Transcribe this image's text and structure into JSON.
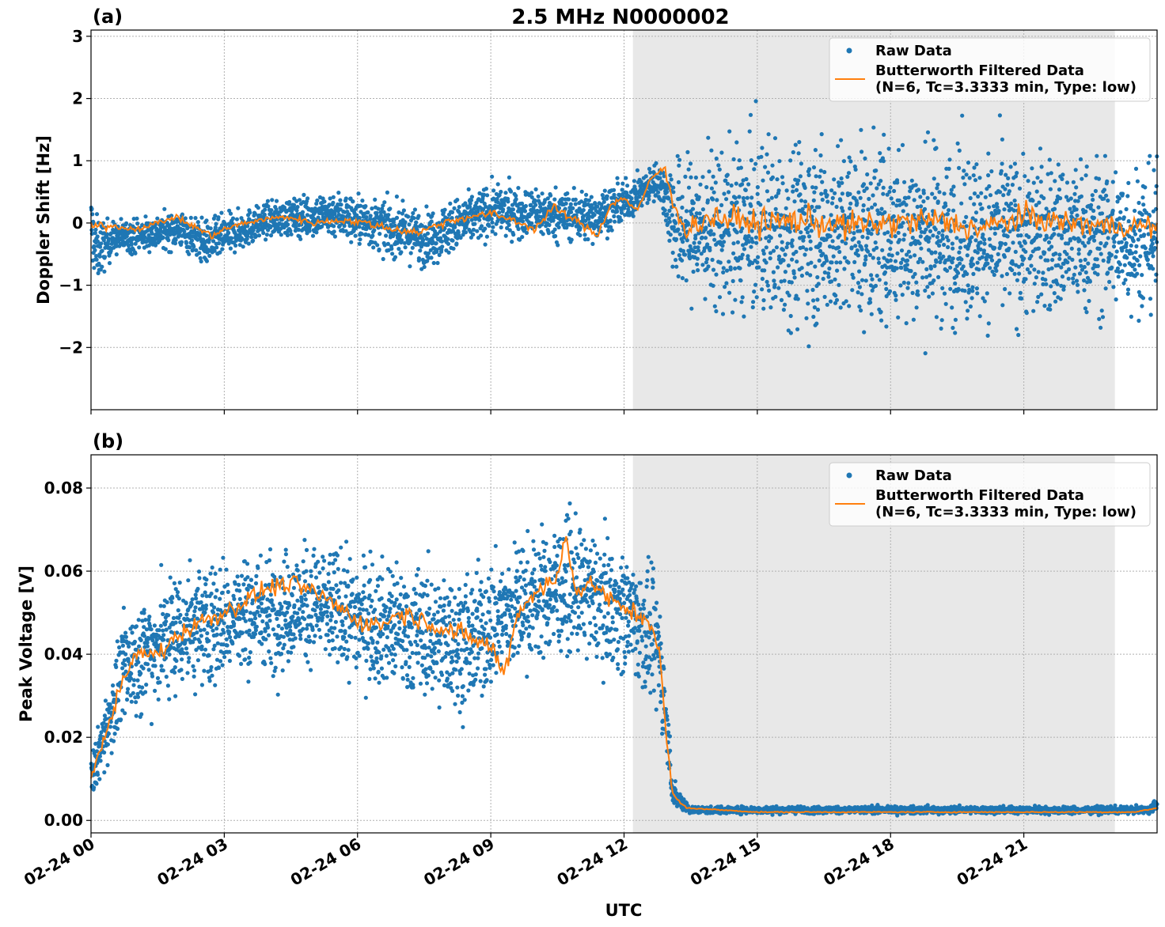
{
  "chart_data": [
    {
      "panel": "(a)",
      "title": "2.5 MHz N0000002",
      "type": "scatter",
      "ylabel": "Doppler Shift [Hz]",
      "xlabel": "",
      "xlim_hours": [
        0,
        24
      ],
      "ylim": [
        -3.0,
        3.1
      ],
      "yticks": [
        -2,
        -1,
        0,
        1,
        2,
        3
      ],
      "ytick_labels": [
        "−2",
        "−1",
        "0",
        "1",
        "2",
        "3"
      ],
      "shaded_interval_hours": [
        12.2,
        23.05
      ],
      "grid": true,
      "legend_position": "top-right",
      "series": [
        {
          "name": "Raw Data",
          "style": "points",
          "color": "#1f77b4",
          "spread_envelope": [
            {
              "x": 0.0,
              "lo": -0.9,
              "hi": 0.9
            },
            {
              "x": 0.1,
              "lo": -1.4,
              "hi": 0.5
            },
            {
              "x": 0.5,
              "lo": -0.7,
              "hi": 0.2
            },
            {
              "x": 2.0,
              "lo": -0.6,
              "hi": 0.4
            },
            {
              "x": 2.6,
              "lo": -0.95,
              "hi": 0.3
            },
            {
              "x": 4.0,
              "lo": -0.4,
              "hi": 0.5
            },
            {
              "x": 5.5,
              "lo": -0.5,
              "hi": 0.8
            },
            {
              "x": 7.5,
              "lo": -1.0,
              "hi": 0.5
            },
            {
              "x": 9.0,
              "lo": -0.5,
              "hi": 0.9
            },
            {
              "x": 11.3,
              "lo": -0.6,
              "hi": 0.8
            },
            {
              "x": 12.2,
              "lo": -0.1,
              "hi": 0.9
            },
            {
              "x": 12.8,
              "lo": 0.2,
              "hi": 1.2
            },
            {
              "x": 13.2,
              "lo": -2.0,
              "hi": 1.8
            },
            {
              "x": 15.0,
              "lo": -2.6,
              "hi": 2.4
            },
            {
              "x": 18.5,
              "lo": -2.7,
              "hi": 2.3
            },
            {
              "x": 24.0,
              "lo": -2.2,
              "hi": 1.7
            }
          ]
        },
        {
          "name": "Butterworth Filtered Data",
          "name_line2": "(N=6, Tc=3.3333 min, Type: low)",
          "style": "line",
          "color": "#ff7f0e",
          "values": [
            {
              "x": 0.0,
              "y": -0.05
            },
            {
              "x": 0.5,
              "y": -0.05
            },
            {
              "x": 1.0,
              "y": -0.1
            },
            {
              "x": 1.5,
              "y": 0.0
            },
            {
              "x": 1.9,
              "y": 0.1
            },
            {
              "x": 2.3,
              "y": -0.05
            },
            {
              "x": 2.7,
              "y": -0.2
            },
            {
              "x": 3.2,
              "y": -0.05
            },
            {
              "x": 3.8,
              "y": 0.05
            },
            {
              "x": 4.4,
              "y": 0.1
            },
            {
              "x": 5.0,
              "y": 0.0
            },
            {
              "x": 5.6,
              "y": 0.05
            },
            {
              "x": 6.2,
              "y": 0.0
            },
            {
              "x": 6.8,
              "y": -0.1
            },
            {
              "x": 7.4,
              "y": -0.15
            },
            {
              "x": 7.9,
              "y": 0.0
            },
            {
              "x": 8.5,
              "y": 0.1
            },
            {
              "x": 9.0,
              "y": 0.15
            },
            {
              "x": 9.5,
              "y": 0.05
            },
            {
              "x": 10.0,
              "y": -0.1
            },
            {
              "x": 10.4,
              "y": 0.25
            },
            {
              "x": 11.0,
              "y": 0.0
            },
            {
              "x": 11.4,
              "y": -0.2
            },
            {
              "x": 11.7,
              "y": 0.3
            },
            {
              "x": 12.0,
              "y": 0.4
            },
            {
              "x": 12.3,
              "y": 0.2
            },
            {
              "x": 12.6,
              "y": 0.7
            },
            {
              "x": 12.9,
              "y": 0.9
            },
            {
              "x": 13.1,
              "y": 0.3
            },
            {
              "x": 13.4,
              "y": -0.1
            },
            {
              "x": 14.0,
              "y": 0.1
            },
            {
              "x": 15.0,
              "y": 0.0
            },
            {
              "x": 16.0,
              "y": 0.05
            },
            {
              "x": 17.0,
              "y": -0.05
            },
            {
              "x": 18.0,
              "y": 0.0
            },
            {
              "x": 19.0,
              "y": 0.05
            },
            {
              "x": 20.0,
              "y": -0.1
            },
            {
              "x": 21.0,
              "y": 0.1
            },
            {
              "x": 22.0,
              "y": 0.0
            },
            {
              "x": 23.0,
              "y": -0.05
            },
            {
              "x": 24.0,
              "y": -0.05
            }
          ]
        }
      ]
    },
    {
      "panel": "(b)",
      "type": "scatter",
      "ylabel": "Peak Voltage [V]",
      "xlabel": "UTC",
      "xlim_hours": [
        0,
        24
      ],
      "ylim": [
        -0.003,
        0.088
      ],
      "yticks": [
        0.0,
        0.02,
        0.04,
        0.06,
        0.08
      ],
      "ytick_labels": [
        "0.00",
        "0.02",
        "0.04",
        "0.06",
        "0.08"
      ],
      "xticks": [
        0,
        3,
        6,
        9,
        12,
        15,
        18,
        21
      ],
      "xtick_labels": [
        "02-24 00",
        "02-24 03",
        "02-24 06",
        "02-24 09",
        "02-24 12",
        "02-24 15",
        "02-24 18",
        "02-24 21"
      ],
      "shaded_interval_hours": [
        12.2,
        23.05
      ],
      "grid": true,
      "legend_position": "top-right",
      "series": [
        {
          "name": "Raw Data",
          "style": "points",
          "color": "#1f77b4",
          "spread_envelope": [
            {
              "x": 0.0,
              "lo": 0.002,
              "hi": 0.018
            },
            {
              "x": 0.3,
              "lo": 0.006,
              "hi": 0.035
            },
            {
              "x": 0.8,
              "lo": 0.015,
              "hi": 0.06
            },
            {
              "x": 2.0,
              "lo": 0.02,
              "hi": 0.072
            },
            {
              "x": 3.5,
              "lo": 0.025,
              "hi": 0.074
            },
            {
              "x": 5.0,
              "lo": 0.028,
              "hi": 0.076
            },
            {
              "x": 7.0,
              "lo": 0.02,
              "hi": 0.072
            },
            {
              "x": 8.5,
              "lo": 0.015,
              "hi": 0.07
            },
            {
              "x": 9.5,
              "lo": 0.025,
              "hi": 0.077
            },
            {
              "x": 10.7,
              "lo": 0.03,
              "hi": 0.083
            },
            {
              "x": 12.2,
              "lo": 0.025,
              "hi": 0.074
            },
            {
              "x": 12.8,
              "lo": 0.015,
              "hi": 0.066
            },
            {
              "x": 13.1,
              "lo": 0.001,
              "hi": 0.012
            },
            {
              "x": 13.5,
              "lo": 0.001,
              "hi": 0.004
            },
            {
              "x": 23.8,
              "lo": 0.001,
              "hi": 0.004
            },
            {
              "x": 24.0,
              "lo": 0.002,
              "hi": 0.006
            }
          ]
        },
        {
          "name": "Butterworth Filtered Data",
          "name_line2": "(N=6, Tc=3.3333 min, Type: low)",
          "style": "line",
          "color": "#ff7f0e",
          "values": [
            {
              "x": 0.0,
              "y": 0.01
            },
            {
              "x": 0.3,
              "y": 0.02
            },
            {
              "x": 0.6,
              "y": 0.03
            },
            {
              "x": 1.0,
              "y": 0.04
            },
            {
              "x": 1.5,
              "y": 0.04
            },
            {
              "x": 2.0,
              "y": 0.045
            },
            {
              "x": 2.5,
              "y": 0.048
            },
            {
              "x": 3.0,
              "y": 0.05
            },
            {
              "x": 3.5,
              "y": 0.053
            },
            {
              "x": 4.0,
              "y": 0.056
            },
            {
              "x": 4.5,
              "y": 0.057
            },
            {
              "x": 5.0,
              "y": 0.055
            },
            {
              "x": 5.5,
              "y": 0.052
            },
            {
              "x": 6.0,
              "y": 0.048
            },
            {
              "x": 6.5,
              "y": 0.047
            },
            {
              "x": 7.0,
              "y": 0.05
            },
            {
              "x": 7.5,
              "y": 0.048
            },
            {
              "x": 8.0,
              "y": 0.046
            },
            {
              "x": 8.5,
              "y": 0.044
            },
            {
              "x": 9.0,
              "y": 0.042
            },
            {
              "x": 9.3,
              "y": 0.035
            },
            {
              "x": 9.6,
              "y": 0.05
            },
            {
              "x": 10.0,
              "y": 0.055
            },
            {
              "x": 10.5,
              "y": 0.058
            },
            {
              "x": 10.7,
              "y": 0.07
            },
            {
              "x": 10.9,
              "y": 0.055
            },
            {
              "x": 11.3,
              "y": 0.057
            },
            {
              "x": 11.8,
              "y": 0.052
            },
            {
              "x": 12.2,
              "y": 0.05
            },
            {
              "x": 12.6,
              "y": 0.048
            },
            {
              "x": 12.8,
              "y": 0.04
            },
            {
              "x": 12.95,
              "y": 0.02
            },
            {
              "x": 13.1,
              "y": 0.006
            },
            {
              "x": 13.4,
              "y": 0.003
            },
            {
              "x": 15.0,
              "y": 0.002
            },
            {
              "x": 18.0,
              "y": 0.002
            },
            {
              "x": 21.0,
              "y": 0.002
            },
            {
              "x": 23.5,
              "y": 0.002
            },
            {
              "x": 24.0,
              "y": 0.003
            }
          ]
        }
      ]
    }
  ],
  "colors": {
    "raw": "#1f77b4",
    "filtered": "#ff7f0e",
    "shade": "#e8e8e8",
    "grid": "#b0b0b0"
  },
  "labels": {
    "title": "2.5 MHz N0000002",
    "panel_a": "(a)",
    "panel_b": "(b)",
    "ylabel_a": "Doppler Shift [Hz]",
    "ylabel_b": "Peak Voltage [V]",
    "xlabel_b": "UTC",
    "legend_raw": "Raw Data",
    "legend_filtered_line1": "Butterworth Filtered Data",
    "legend_filtered_line2": "(N=6, Tc=3.3333 min, Type: low)"
  }
}
